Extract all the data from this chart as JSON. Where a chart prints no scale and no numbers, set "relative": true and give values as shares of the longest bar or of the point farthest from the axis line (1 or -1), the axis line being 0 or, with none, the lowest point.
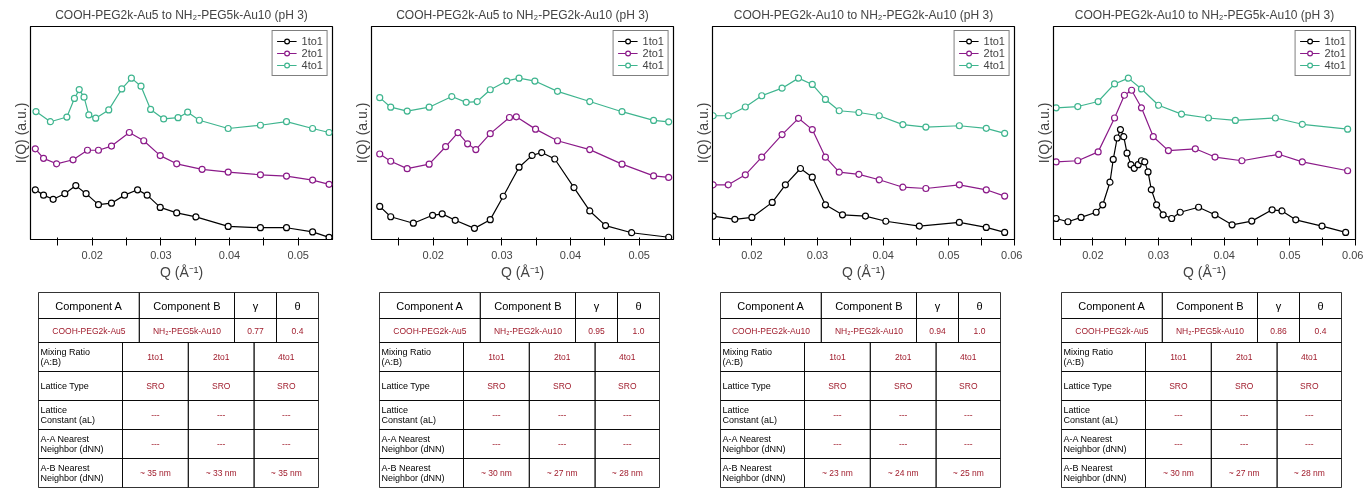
{
  "chart_data": [
    {
      "type": "line",
      "title": "COOH-PEG2k-Au5 to NH₂-PEG5k-Au10 (pH 3)",
      "xlabel": "Q (Å⁻¹)",
      "ylabel": "I(Q) (a.u.)",
      "relative": true,
      "marker": "circle",
      "legend": "top right",
      "tick_labels": "x",
      "xlim": [
        0.011,
        0.055
      ],
      "xticks": [
        {
          "value": 0.015,
          "label": null
        },
        0.02,
        {
          "value": 0.025,
          "label": null
        },
        0.03,
        {
          "value": 0.035,
          "label": null
        },
        0.04,
        {
          "value": 0.045,
          "label": null
        },
        0.05
      ],
      "series": [
        {
          "name": "1to1",
          "color": "#000000",
          "x": [
            0.0117,
            0.0129,
            0.0143,
            0.016,
            0.0176,
            0.0191,
            0.0209,
            0.0228,
            0.0247,
            0.0266,
            0.028,
            0.0299,
            0.0323,
            0.0351,
            0.0398,
            0.0445,
            0.0483,
            0.0521,
            0.0545
          ],
          "values": [
            0.308,
            0.275,
            0.249,
            0.284,
            0.334,
            0.284,
            0.216,
            0.225,
            0.275,
            0.308,
            0.275,
            0.199,
            0.165,
            0.14,
            0.081,
            0.073,
            0.073,
            0.047,
            0.013
          ]
        },
        {
          "name": "2to1",
          "color": "#8b1a89",
          "x": [
            0.0117,
            0.0129,
            0.0148,
            0.0172,
            0.0193,
            0.0209,
            0.0228,
            0.0254,
            0.0275,
            0.0299,
            0.0323,
            0.036,
            0.0398,
            0.0445,
            0.0483,
            0.0521,
            0.0545
          ],
          "values": [
            0.562,
            0.503,
            0.469,
            0.494,
            0.553,
            0.553,
            0.579,
            0.663,
            0.612,
            0.52,
            0.469,
            0.435,
            0.418,
            0.401,
            0.393,
            0.368,
            0.342
          ]
        },
        {
          "name": "4to1",
          "color": "#3fb58f",
          "x": [
            0.0118,
            0.0139,
            0.0163,
            0.0174,
            0.0181,
            0.0188,
            0.0195,
            0.0205,
            0.0224,
            0.0243,
            0.0257,
            0.0271,
            0.0285,
            0.0304,
            0.0325,
            0.0339,
            0.0356,
            0.0398,
            0.0445,
            0.0483,
            0.0521,
            0.0545
          ],
          "values": [
            0.793,
            0.73,
            0.759,
            0.874,
            0.929,
            0.882,
            0.772,
            0.752,
            0.803,
            0.933,
            1.0,
            0.95,
            0.806,
            0.747,
            0.755,
            0.789,
            0.739,
            0.688,
            0.708,
            0.73,
            0.688,
            0.663
          ]
        }
      ],
      "annotations": [
        "Component A",
        "Component B",
        "γ",
        "θ",
        "COOH-PEG2k-Au5",
        "NH₂-PEG5k-Au10",
        "0.77",
        "0.4",
        "Mixing Ratio (A:B)",
        "1to1",
        "2to1",
        "4to1",
        "Lattice Type",
        "SRO",
        "SRO",
        "SRO",
        "Lattice Constant (aL)",
        "---",
        "---",
        "---",
        "A-A Nearest Neighbor (dNN)",
        "---",
        "---",
        "---",
        "A-B Nearest Neighbor (dNN)",
        "~ 35 nm",
        "~ 33 nm",
        "~ 35 nm"
      ]
    },
    {
      "type": "line",
      "title": "COOH-PEG2k-Au5 to NH₂-PEG2k-Au10 (pH 3)",
      "xlabel": "Q (Å⁻¹)",
      "ylabel": "I(Q) (a.u.)",
      "relative": true,
      "marker": "circle",
      "legend": "top right",
      "tick_labels": "x",
      "xlim": [
        0.011,
        0.055
      ],
      "xticks": [
        {
          "value": 0.015,
          "label": null
        },
        0.02,
        {
          "value": 0.025,
          "label": null
        },
        0.03,
        {
          "value": 0.035,
          "label": null
        },
        0.04,
        {
          "value": 0.045,
          "label": null
        },
        0.05
      ],
      "series": [
        {
          "name": "1to1",
          "color": "#000000",
          "x": [
            0.0122,
            0.0138,
            0.0171,
            0.0199,
            0.0213,
            0.0232,
            0.026,
            0.0283,
            0.0302,
            0.0325,
            0.0344,
            0.0358,
            0.0377,
            0.0405,
            0.0428,
            0.0451,
            0.0489,
            0.0543
          ],
          "values": [
            0.205,
            0.141,
            0.101,
            0.15,
            0.159,
            0.119,
            0.069,
            0.123,
            0.268,
            0.448,
            0.521,
            0.539,
            0.499,
            0.322,
            0.177,
            0.086,
            0.042,
            0.014
          ]
        },
        {
          "name": "2to1",
          "color": "#8b1a89",
          "x": [
            0.0122,
            0.0138,
            0.0162,
            0.0194,
            0.0218,
            0.0236,
            0.025,
            0.0262,
            0.0283,
            0.0311,
            0.0321,
            0.0349,
            0.0381,
            0.0428,
            0.0475,
            0.0521,
            0.0543
          ],
          "values": [
            0.53,
            0.485,
            0.439,
            0.467,
            0.575,
            0.662,
            0.593,
            0.557,
            0.656,
            0.756,
            0.76,
            0.684,
            0.612,
            0.557,
            0.467,
            0.394,
            0.385
          ]
        },
        {
          "name": "4to1",
          "color": "#3fb58f",
          "x": [
            0.0122,
            0.0138,
            0.0162,
            0.0194,
            0.0227,
            0.0248,
            0.0264,
            0.0283,
            0.0307,
            0.0325,
            0.0348,
            0.0381,
            0.0428,
            0.0475,
            0.0521,
            0.0543
          ],
          "values": [
            0.879,
            0.82,
            0.796,
            0.82,
            0.886,
            0.85,
            0.855,
            0.928,
            0.982,
            1.0,
            0.982,
            0.918,
            0.855,
            0.792,
            0.738,
            0.729
          ]
        }
      ],
      "annotations": [
        "Component A",
        "Component B",
        "γ",
        "θ",
        "COOH-PEG2k-Au5",
        "NH₂-PEG2k-Au10",
        "0.95",
        "1.0",
        "Mixing Ratio (A:B)",
        "1to1",
        "2to1",
        "4to1",
        "Lattice Type",
        "SRO",
        "SRO",
        "SRO",
        "Lattice Constant (aL)",
        "---",
        "---",
        "---",
        "A-A Nearest Neighbor (dNN)",
        "---",
        "---",
        "---",
        "A-B Nearest Neighbor (dNN)",
        "~ 30 nm",
        "~ 27 nm",
        "~ 28 nm"
      ]
    },
    {
      "type": "line",
      "title": "COOH-PEG2k-Au10 to NH₂-PEG2k-Au10 (pH 3)",
      "xlabel": "Q (Å⁻¹)",
      "ylabel": "I(Q) (a.u.)",
      "relative": true,
      "marker": "circle",
      "legend": "top right",
      "tick_labels": "x",
      "xlim": [
        0.014,
        0.06
      ],
      "xticks": [
        {
          "value": 0.015,
          "label": null
        },
        0.02,
        {
          "value": 0.025,
          "label": null
        },
        0.03,
        {
          "value": 0.035,
          "label": null
        },
        0.04,
        {
          "value": 0.045,
          "label": null
        },
        0.05,
        {
          "value": 0.055,
          "label": null
        },
        0.06
      ],
      "series": [
        {
          "name": "1to1",
          "color": "#000000",
          "x": [
            0.0141,
            0.0174,
            0.02,
            0.0231,
            0.0251,
            0.0274,
            0.0292,
            0.0312,
            0.0338,
            0.0373,
            0.0404,
            0.0455,
            0.0516,
            0.0557,
            0.0585
          ],
          "values": [
            0.145,
            0.125,
            0.137,
            0.23,
            0.339,
            0.44,
            0.386,
            0.215,
            0.153,
            0.145,
            0.113,
            0.083,
            0.106,
            0.075,
            0.044
          ]
        },
        {
          "name": "2to1",
          "color": "#8b1a89",
          "x": [
            0.0141,
            0.0164,
            0.019,
            0.0215,
            0.0246,
            0.0271,
            0.0292,
            0.0312,
            0.0333,
            0.0363,
            0.0394,
            0.043,
            0.0465,
            0.0516,
            0.0557,
            0.0585
          ],
          "values": [
            0.339,
            0.339,
            0.401,
            0.51,
            0.65,
            0.751,
            0.681,
            0.51,
            0.417,
            0.404,
            0.37,
            0.324,
            0.316,
            0.339,
            0.308,
            0.269
          ]
        },
        {
          "name": "4to1",
          "color": "#3fb58f",
          "x": [
            0.0141,
            0.0164,
            0.019,
            0.0215,
            0.0246,
            0.0271,
            0.0292,
            0.0312,
            0.0333,
            0.0363,
            0.0394,
            0.043,
            0.0465,
            0.0516,
            0.0557,
            0.0585
          ],
          "values": [
            0.767,
            0.767,
            0.821,
            0.891,
            0.938,
            1.0,
            0.961,
            0.868,
            0.798,
            0.787,
            0.767,
            0.712,
            0.697,
            0.705,
            0.689,
            0.658
          ]
        }
      ],
      "annotations": [
        "Component A",
        "Component B",
        "γ",
        "θ",
        "COOH-PEG2k-Au10",
        "NH₂-PEG2k-Au10",
        "0.94",
        "1.0",
        "Mixing Ratio (A:B)",
        "1to1",
        "2to1",
        "4to1",
        "Lattice Type",
        "SRO",
        "SRO",
        "SRO",
        "Lattice Constant (aL)",
        "---",
        "---",
        "---",
        "A-A Nearest Neighbor (dNN)",
        "---",
        "---",
        "---",
        "A-B Nearest Neighbor (dNN)",
        "~ 23 nm",
        "~ 24 nm",
        "~ 25 nm"
      ]
    },
    {
      "type": "line",
      "title": "COOH-PEG2k-Au10 to NH₂-PEG5k-Au10 (pH 3)",
      "xlabel": "Q (Å⁻¹)",
      "ylabel": "I(Q) (a.u.)",
      "relative": true,
      "marker": "circle",
      "legend": "top right",
      "tick_labels": "x",
      "xlim": [
        0.014,
        0.06
      ],
      "xticks": [
        {
          "value": 0.015,
          "label": null
        },
        0.02,
        {
          "value": 0.025,
          "label": null
        },
        0.03,
        {
          "value": 0.035,
          "label": null
        },
        0.04,
        {
          "value": 0.045,
          "label": null
        },
        0.05,
        {
          "value": 0.055,
          "label": null
        },
        0.06
      ],
      "series": [
        {
          "name": "1to1",
          "color": "#000000",
          "x": [
            0.0144,
            0.0162,
            0.0182,
            0.0205,
            0.0215,
            0.0226,
            0.0231,
            0.0237,
            0.0242,
            0.0247,
            0.0252,
            0.0258,
            0.0263,
            0.0269,
            0.0274,
            0.0279,
            0.0284,
            0.0289,
            0.0297,
            0.0307,
            0.032,
            0.0333,
            0.0361,
            0.0386,
            0.0412,
            0.0442,
            0.0473,
            0.0488,
            0.0509,
            0.0549,
            0.0585
          ],
          "values": [
            0.13,
            0.11,
            0.137,
            0.169,
            0.215,
            0.355,
            0.496,
            0.629,
            0.681,
            0.637,
            0.535,
            0.464,
            0.441,
            0.464,
            0.488,
            0.481,
            0.419,
            0.309,
            0.215,
            0.153,
            0.13,
            0.169,
            0.2,
            0.153,
            0.091,
            0.114,
            0.184,
            0.177,
            0.122,
            0.083,
            0.044
          ]
        },
        {
          "name": "2to1",
          "color": "#8b1a89",
          "x": [
            0.0144,
            0.0177,
            0.0208,
            0.0233,
            0.0248,
            0.0259,
            0.0274,
            0.0292,
            0.0315,
            0.0356,
            0.0386,
            0.0427,
            0.0483,
            0.0519,
            0.0588
          ],
          "values": [
            0.481,
            0.488,
            0.543,
            0.753,
            0.894,
            0.925,
            0.816,
            0.637,
            0.551,
            0.562,
            0.511,
            0.488,
            0.528,
            0.481,
            0.426
          ]
        },
        {
          "name": "4to1",
          "color": "#3fb58f",
          "x": [
            0.0144,
            0.0177,
            0.0208,
            0.0233,
            0.0254,
            0.0274,
            0.03,
            0.0335,
            0.0376,
            0.0417,
            0.0478,
            0.0519,
            0.0588
          ],
          "values": [
            0.816,
            0.824,
            0.855,
            0.964,
            1.0,
            0.933,
            0.832,
            0.777,
            0.753,
            0.738,
            0.753,
            0.714,
            0.684
          ]
        }
      ],
      "annotations": [
        "Component A",
        "Component B",
        "γ",
        "θ",
        "COOH-PEG2k-Au5",
        "NH₂-PEG5k-Au10",
        "0.86",
        "0.4",
        "Mixing Ratio (A:B)",
        "1to1",
        "2to1",
        "4to1",
        "Lattice Type",
        "SRO",
        "SRO",
        "SRO",
        "Lattice Constant (aL)",
        "---",
        "---",
        "---",
        "A-A Nearest Neighbor (dNN)",
        "---",
        "---",
        "---",
        "A-B Nearest Neighbor (dNN)",
        "~ 30 nm",
        "~ 27 nm",
        "~ 28 nm"
      ]
    }
  ]
}
